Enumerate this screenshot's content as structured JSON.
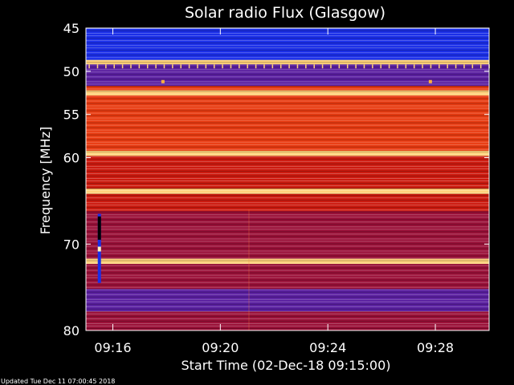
{
  "chart_data": {
    "type": "heatmap",
    "title": "Solar radio Flux (Glasgow)",
    "xlabel": "Start Time (02-Dec-18 09:15:00)",
    "ylabel": "Frequency [MHz]",
    "x_ticks": [
      "09:16",
      "09:20",
      "09:24",
      "09:28"
    ],
    "x_tick_minutes": [
      1,
      5,
      9,
      13
    ],
    "xlim_minutes": [
      0,
      15
    ],
    "y_ticks": [
      45,
      50,
      55,
      60,
      70,
      80
    ],
    "ylim_mhz": [
      45,
      80
    ],
    "frequency_bands": [
      {
        "from": 45,
        "to": 47.3,
        "level": "low"
      },
      {
        "from": 47.3,
        "to": 48.7,
        "level": "low"
      },
      {
        "from": 48.7,
        "to": 49.2,
        "level": "peak"
      },
      {
        "from": 49.2,
        "to": 51.7,
        "level": "mid-low"
      },
      {
        "from": 51.7,
        "to": 52.2,
        "level": "high"
      },
      {
        "from": 52.2,
        "to": 52.8,
        "level": "peak"
      },
      {
        "from": 52.8,
        "to": 59.2,
        "level": "high"
      },
      {
        "from": 59.2,
        "to": 59.8,
        "level": "peak"
      },
      {
        "from": 59.8,
        "to": 63.6,
        "level": "mid-high"
      },
      {
        "from": 63.6,
        "to": 64.2,
        "level": "peak"
      },
      {
        "from": 64.2,
        "to": 66.2,
        "level": "mid-high"
      },
      {
        "from": 66.2,
        "to": 71.7,
        "level": "mid"
      },
      {
        "from": 71.7,
        "to": 72.3,
        "level": "peak"
      },
      {
        "from": 72.3,
        "to": 75.2,
        "level": "mid"
      },
      {
        "from": 75.2,
        "to": 77.8,
        "level": "mid-low"
      },
      {
        "from": 77.8,
        "to": 80,
        "level": "mid"
      }
    ],
    "levels": {
      "low": "#1a2ee8",
      "mid-low": "#5a1fa0",
      "mid": "#9a1038",
      "mid-high": "#cc1a0f",
      "high": "#e83a10",
      "peak": "#ffd27a"
    },
    "spot_events": [
      {
        "minute": 2.85,
        "mhz": 51.2
      },
      {
        "minute": 12.8,
        "mhz": 51.2
      }
    ],
    "interference_strip": {
      "minute": 0.5,
      "mhz_from": 66.5,
      "mhz_to": 74.5
    }
  },
  "footer": {
    "updated": "Updated Tue Dec 11 07:00:45 2018"
  }
}
